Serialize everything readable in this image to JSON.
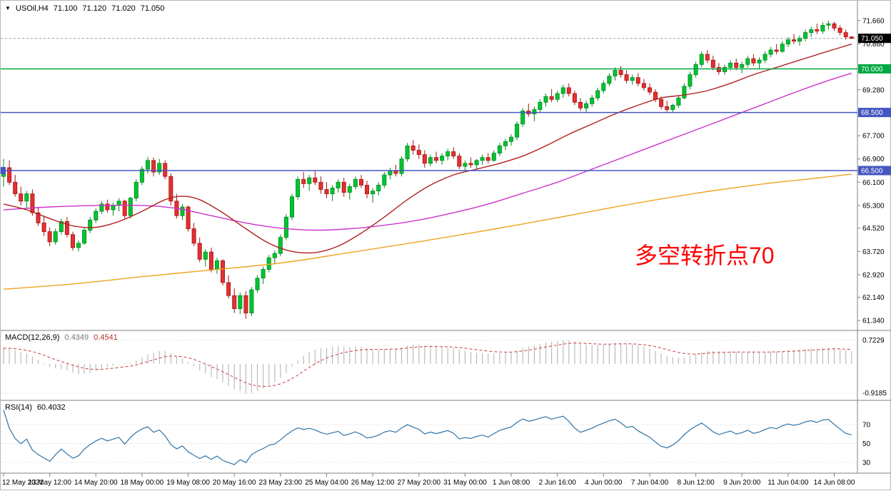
{
  "header": {
    "symbol_period": "USOil,H4",
    "open": "71.100",
    "high": "71.120",
    "low": "71.020",
    "close": "71.050"
  },
  "icons": {
    "symbol_marker": "▼"
  },
  "annotation": {
    "text": "多空转折点70",
    "color": "#FF0000"
  },
  "chart_data": {
    "type": "candlestick",
    "title": "USOil H4 chart with MA overlays, MACD and RSI",
    "y_range": [
      61.1,
      72.0
    ],
    "y_ticks": [
      "71.660",
      "70.860",
      "69.280",
      "67.700",
      "66.900",
      "66.100",
      "65.300",
      "64.520",
      "63.720",
      "62.920",
      "62.140",
      "61.340"
    ],
    "x_labels": [
      "12 May 2021",
      "13 May 12:00",
      "14 May 20:00",
      "18 May 00:00",
      "19 May 08:00",
      "20 May 16:00",
      "23 May 23:00",
      "25 May 04:00",
      "26 May 12:00",
      "27 May 20:00",
      "31 May 00:00",
      "1 Jun 08:00",
      "2 Jun 16:00",
      "4 Jun 00:00",
      "7 Jun 04:00",
      "8 Jun 12:00",
      "9 Jun 20:00",
      "11 Jun 04:00",
      "14 Jun 08:00"
    ],
    "bars_per_label": 8,
    "current_price": {
      "value": 71.05,
      "label": "71.050",
      "bg": "#000000",
      "fg": "#FFFFFF"
    },
    "hlines": [
      {
        "price": 70.0,
        "label": "70.000",
        "color": "#00A944",
        "left_marker": false
      },
      {
        "price": 68.5,
        "label": "68.500",
        "color": "#4456C0",
        "left_marker": false
      },
      {
        "price": 66.5,
        "label": "66.500",
        "color": "#4456C0",
        "left_marker": true
      }
    ],
    "colors": {
      "up": "#00C432",
      "up_border": "#008A1E",
      "down": "#E23030",
      "down_border": "#A81414",
      "axis": "#808080",
      "text": "#000000"
    },
    "candles": [
      [
        66.3,
        66.9,
        65.95,
        66.6
      ],
      [
        66.6,
        66.85,
        66.0,
        66.1
      ],
      [
        66.1,
        66.35,
        65.6,
        65.7
      ],
      [
        65.7,
        65.95,
        65.3,
        65.45
      ],
      [
        65.45,
        65.8,
        65.2,
        65.7
      ],
      [
        65.7,
        65.85,
        64.95,
        65.05
      ],
      [
        65.05,
        65.25,
        64.6,
        64.7
      ],
      [
        64.7,
        64.95,
        64.25,
        64.4
      ],
      [
        64.4,
        64.55,
        63.9,
        64.05
      ],
      [
        64.05,
        64.5,
        63.95,
        64.4
      ],
      [
        64.4,
        64.85,
        64.3,
        64.75
      ],
      [
        64.75,
        64.9,
        64.2,
        64.3
      ],
      [
        64.3,
        64.4,
        63.75,
        63.85
      ],
      [
        63.85,
        64.1,
        63.72,
        64.0
      ],
      [
        64.0,
        64.55,
        63.95,
        64.45
      ],
      [
        64.45,
        64.9,
        64.35,
        64.8
      ],
      [
        64.8,
        65.2,
        64.7,
        65.1
      ],
      [
        65.1,
        65.45,
        65.0,
        65.35
      ],
      [
        65.35,
        65.5,
        65.05,
        65.15
      ],
      [
        65.15,
        65.4,
        64.95,
        65.3
      ],
      [
        65.3,
        65.55,
        65.1,
        65.45
      ],
      [
        65.45,
        65.5,
        64.85,
        64.95
      ],
      [
        64.95,
        65.6,
        64.85,
        65.55
      ],
      [
        65.55,
        66.2,
        65.45,
        66.1
      ],
      [
        66.1,
        66.65,
        66.0,
        66.55
      ],
      [
        66.55,
        66.97,
        66.4,
        66.85
      ],
      [
        66.85,
        66.95,
        66.3,
        66.45
      ],
      [
        66.45,
        66.9,
        66.35,
        66.75
      ],
      [
        66.75,
        66.85,
        66.2,
        66.3
      ],
      [
        66.3,
        66.4,
        65.3,
        65.45
      ],
      [
        65.45,
        65.7,
        64.85,
        64.95
      ],
      [
        64.95,
        65.35,
        64.8,
        65.25
      ],
      [
        65.25,
        65.3,
        64.4,
        64.5
      ],
      [
        64.5,
        64.7,
        63.9,
        64.0
      ],
      [
        64.0,
        64.2,
        63.35,
        63.45
      ],
      [
        63.45,
        63.8,
        63.2,
        63.7
      ],
      [
        63.7,
        63.85,
        63.0,
        63.1
      ],
      [
        63.1,
        63.5,
        62.95,
        63.4
      ],
      [
        63.4,
        63.45,
        62.55,
        62.65
      ],
      [
        62.65,
        62.9,
        62.1,
        62.2
      ],
      [
        62.2,
        62.45,
        61.6,
        61.75
      ],
      [
        61.75,
        62.3,
        61.56,
        62.2
      ],
      [
        62.2,
        62.35,
        61.4,
        61.6
      ],
      [
        61.6,
        62.5,
        61.5,
        62.4
      ],
      [
        62.4,
        62.9,
        62.3,
        62.8
      ],
      [
        62.8,
        63.2,
        62.6,
        63.1
      ],
      [
        63.1,
        63.6,
        63.0,
        63.5
      ],
      [
        63.5,
        63.75,
        63.3,
        63.65
      ],
      [
        63.65,
        64.3,
        63.55,
        64.2
      ],
      [
        64.2,
        65.0,
        64.1,
        64.9
      ],
      [
        64.9,
        65.7,
        64.8,
        65.6
      ],
      [
        65.6,
        66.3,
        65.5,
        66.2
      ],
      [
        66.2,
        66.45,
        65.9,
        66.05
      ],
      [
        66.05,
        66.35,
        65.8,
        66.25
      ],
      [
        66.25,
        66.5,
        66.0,
        66.1
      ],
      [
        66.1,
        66.3,
        65.7,
        65.85
      ],
      [
        65.85,
        66.1,
        65.55,
        65.7
      ],
      [
        65.7,
        66.0,
        65.45,
        65.9
      ],
      [
        65.9,
        66.2,
        65.75,
        66.1
      ],
      [
        66.1,
        66.25,
        65.6,
        65.75
      ],
      [
        65.75,
        66.05,
        65.5,
        65.95
      ],
      [
        65.95,
        66.3,
        65.85,
        66.2
      ],
      [
        66.2,
        66.35,
        65.9,
        66.0
      ],
      [
        66.0,
        66.15,
        65.55,
        65.7
      ],
      [
        65.7,
        65.9,
        65.4,
        65.8
      ],
      [
        65.8,
        66.1,
        65.65,
        66.0
      ],
      [
        66.0,
        66.45,
        65.9,
        66.35
      ],
      [
        66.35,
        66.6,
        66.2,
        66.5
      ],
      [
        66.5,
        66.7,
        66.3,
        66.4
      ],
      [
        66.4,
        67.0,
        66.3,
        66.9
      ],
      [
        66.9,
        67.45,
        66.8,
        67.35
      ],
      [
        67.35,
        67.55,
        67.05,
        67.2
      ],
      [
        67.2,
        67.4,
        66.9,
        67.05
      ],
      [
        67.05,
        67.2,
        66.6,
        66.75
      ],
      [
        66.75,
        67.05,
        66.65,
        66.95
      ],
      [
        66.95,
        67.15,
        66.75,
        66.85
      ],
      [
        66.85,
        67.1,
        66.7,
        67.0
      ],
      [
        67.0,
        67.25,
        66.85,
        67.15
      ],
      [
        67.15,
        67.3,
        66.9,
        67.0
      ],
      [
        67.0,
        67.1,
        66.55,
        66.65
      ],
      [
        66.65,
        66.85,
        66.5,
        66.75
      ],
      [
        66.75,
        66.95,
        66.6,
        66.7
      ],
      [
        66.7,
        66.9,
        66.55,
        66.85
      ],
      [
        66.85,
        67.05,
        66.7,
        66.95
      ],
      [
        66.95,
        67.1,
        66.75,
        66.85
      ],
      [
        66.85,
        67.2,
        66.8,
        67.1
      ],
      [
        67.1,
        67.45,
        67.0,
        67.35
      ],
      [
        67.35,
        67.6,
        67.2,
        67.5
      ],
      [
        67.5,
        67.75,
        67.35,
        67.65
      ],
      [
        67.65,
        68.2,
        67.55,
        68.1
      ],
      [
        68.1,
        68.65,
        68.0,
        68.55
      ],
      [
        68.55,
        68.8,
        68.35,
        68.45
      ],
      [
        68.45,
        68.7,
        68.2,
        68.6
      ],
      [
        68.6,
        68.95,
        68.5,
        68.85
      ],
      [
        68.85,
        69.15,
        68.7,
        69.05
      ],
      [
        69.05,
        69.3,
        68.85,
        68.95
      ],
      [
        68.95,
        69.25,
        68.85,
        69.15
      ],
      [
        69.15,
        69.45,
        69.0,
        69.35
      ],
      [
        69.35,
        69.5,
        69.05,
        69.15
      ],
      [
        69.15,
        69.25,
        68.75,
        68.85
      ],
      [
        68.85,
        69.0,
        68.55,
        68.65
      ],
      [
        68.65,
        68.9,
        68.5,
        68.8
      ],
      [
        68.8,
        69.1,
        68.7,
        69.0
      ],
      [
        69.0,
        69.35,
        68.9,
        69.25
      ],
      [
        69.25,
        69.6,
        69.15,
        69.5
      ],
      [
        69.5,
        69.85,
        69.4,
        69.75
      ],
      [
        69.75,
        70.05,
        69.6,
        69.95
      ],
      [
        69.95,
        70.1,
        69.7,
        69.8
      ],
      [
        69.8,
        69.95,
        69.5,
        69.6
      ],
      [
        69.6,
        69.8,
        69.45,
        69.7
      ],
      [
        69.7,
        69.85,
        69.4,
        69.5
      ],
      [
        69.5,
        69.65,
        69.25,
        69.35
      ],
      [
        69.35,
        69.5,
        69.1,
        69.2
      ],
      [
        69.2,
        69.3,
        68.85,
        68.95
      ],
      [
        68.95,
        69.05,
        68.6,
        68.7
      ],
      [
        68.7,
        68.9,
        68.52,
        68.6
      ],
      [
        68.6,
        68.8,
        68.5,
        68.75
      ],
      [
        68.75,
        69.1,
        68.65,
        69.0
      ],
      [
        69.0,
        69.5,
        68.95,
        69.4
      ],
      [
        69.4,
        69.9,
        69.3,
        69.8
      ],
      [
        69.8,
        70.25,
        69.7,
        70.15
      ],
      [
        70.15,
        70.6,
        70.05,
        70.5
      ],
      [
        70.5,
        70.65,
        70.2,
        70.3
      ],
      [
        70.3,
        70.45,
        69.95,
        70.05
      ],
      [
        70.05,
        70.2,
        69.8,
        69.9
      ],
      [
        69.9,
        70.15,
        69.8,
        70.05
      ],
      [
        70.05,
        70.3,
        69.95,
        70.2
      ],
      [
        70.2,
        70.35,
        69.95,
        70.05
      ],
      [
        70.05,
        70.25,
        69.85,
        70.15
      ],
      [
        70.15,
        70.45,
        70.05,
        70.35
      ],
      [
        70.35,
        70.5,
        70.1,
        70.2
      ],
      [
        70.2,
        70.4,
        70.0,
        70.3
      ],
      [
        70.3,
        70.6,
        70.2,
        70.5
      ],
      [
        70.5,
        70.75,
        70.4,
        70.65
      ],
      [
        70.65,
        70.85,
        70.5,
        70.6
      ],
      [
        70.6,
        70.95,
        70.55,
        70.85
      ],
      [
        70.85,
        71.1,
        70.75,
        71.0
      ],
      [
        71.0,
        71.2,
        70.85,
        70.95
      ],
      [
        70.95,
        71.15,
        70.8,
        71.05
      ],
      [
        71.05,
        71.35,
        70.95,
        71.25
      ],
      [
        71.25,
        71.45,
        71.1,
        71.35
      ],
      [
        71.35,
        71.55,
        71.2,
        71.3
      ],
      [
        71.3,
        71.6,
        71.2,
        71.5
      ],
      [
        71.5,
        71.66,
        71.35,
        71.55
      ],
      [
        71.55,
        71.62,
        71.3,
        71.4
      ],
      [
        71.4,
        71.5,
        71.15,
        71.25
      ],
      [
        71.25,
        71.35,
        71.0,
        71.1
      ],
      [
        71.1,
        71.12,
        71.02,
        71.05
      ]
    ],
    "moving_averages": [
      {
        "name": "ma-fast",
        "color": "#B22222",
        "points": [
          [
            0,
            65.35
          ],
          [
            4,
            65.15
          ],
          [
            8,
            64.85
          ],
          [
            12,
            64.6
          ],
          [
            16,
            64.55
          ],
          [
            20,
            64.75
          ],
          [
            24,
            65.1
          ],
          [
            28,
            65.5
          ],
          [
            31,
            65.62
          ],
          [
            34,
            65.5
          ],
          [
            38,
            65.05
          ],
          [
            42,
            64.5
          ],
          [
            46,
            64.0
          ],
          [
            50,
            63.72
          ],
          [
            54,
            63.68
          ],
          [
            58,
            63.9
          ],
          [
            62,
            64.35
          ],
          [
            66,
            64.9
          ],
          [
            70,
            65.5
          ],
          [
            74,
            66.0
          ],
          [
            78,
            66.35
          ],
          [
            82,
            66.55
          ],
          [
            86,
            66.75
          ],
          [
            90,
            67.0
          ],
          [
            94,
            67.35
          ],
          [
            98,
            67.75
          ],
          [
            102,
            68.1
          ],
          [
            106,
            68.45
          ],
          [
            110,
            68.75
          ],
          [
            114,
            69.0
          ],
          [
            118,
            69.1
          ],
          [
            122,
            69.25
          ],
          [
            126,
            69.5
          ],
          [
            130,
            69.8
          ],
          [
            134,
            70.05
          ],
          [
            138,
            70.3
          ],
          [
            142,
            70.55
          ],
          [
            147,
            70.85
          ]
        ]
      },
      {
        "name": "ma-mid",
        "color": "#CC33CC",
        "points": [
          [
            0,
            65.15
          ],
          [
            8,
            65.25
          ],
          [
            16,
            65.3
          ],
          [
            24,
            65.3
          ],
          [
            30,
            65.2
          ],
          [
            36,
            64.95
          ],
          [
            42,
            64.7
          ],
          [
            48,
            64.52
          ],
          [
            54,
            64.45
          ],
          [
            60,
            64.5
          ],
          [
            66,
            64.62
          ],
          [
            72,
            64.8
          ],
          [
            78,
            65.05
          ],
          [
            84,
            65.35
          ],
          [
            90,
            65.72
          ],
          [
            96,
            66.1
          ],
          [
            102,
            66.55
          ],
          [
            108,
            67.0
          ],
          [
            114,
            67.45
          ],
          [
            120,
            67.9
          ],
          [
            126,
            68.35
          ],
          [
            132,
            68.8
          ],
          [
            138,
            69.25
          ],
          [
            143,
            69.6
          ],
          [
            147,
            69.85
          ]
        ]
      },
      {
        "name": "ma-slow",
        "color": "#EFA320",
        "points": [
          [
            0,
            62.42
          ],
          [
            12,
            62.6
          ],
          [
            24,
            62.85
          ],
          [
            36,
            63.08
          ],
          [
            48,
            63.32
          ],
          [
            60,
            63.68
          ],
          [
            72,
            64.05
          ],
          [
            84,
            64.45
          ],
          [
            96,
            64.88
          ],
          [
            108,
            65.32
          ],
          [
            120,
            65.72
          ],
          [
            132,
            66.05
          ],
          [
            140,
            66.22
          ],
          [
            147,
            66.38
          ]
        ]
      }
    ],
    "indicators": [
      {
        "type": "macd",
        "label": "MACD(12,26,9)",
        "value_main": "0.4349",
        "value_signal": "0.4541",
        "scale_top": "0.7229",
        "scale_bottom": "-0.9185",
        "fast": 12,
        "slow": 26,
        "signal": 9,
        "histogram_color": "#BBBBBB",
        "signal_color": "#C34040"
      },
      {
        "type": "rsi",
        "label": "RSI(14)",
        "value": "60.4032",
        "period": 14,
        "levels": [
          "70",
          "50",
          "30"
        ],
        "color": "#2E74A8"
      }
    ]
  }
}
